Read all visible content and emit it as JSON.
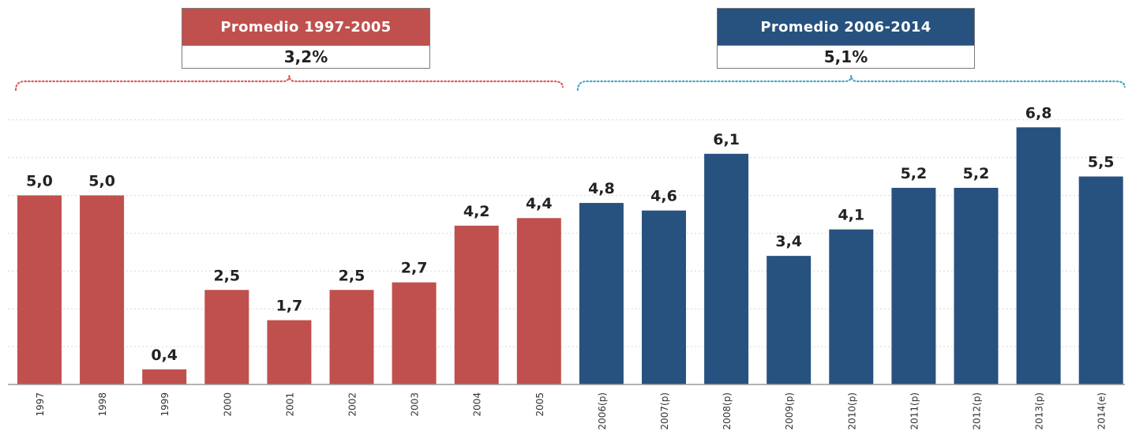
{
  "colors": {
    "period_a": "#c0504d",
    "period_b": "#27517f",
    "grid": "#d9d9d9",
    "brace_a": "#e05a5a",
    "brace_b": "#4aa6c8"
  },
  "averages": [
    {
      "label": "Promedio 1997-2005",
      "value": "3,2%"
    },
    {
      "label": "Promedio 2006-2014",
      "value": "5,1%"
    }
  ],
  "chart_data": {
    "type": "bar",
    "categories": [
      "1997",
      "1998",
      "1999",
      "2000",
      "2001",
      "2002",
      "2003",
      "2004",
      "2005",
      "2006(p)",
      "2007(p)",
      "2008(p)",
      "2009(p)",
      "2010(p)",
      "2011(p)",
      "2012(p)",
      "2013(p)",
      "2014(e)"
    ],
    "values": [
      5.0,
      5.0,
      0.4,
      2.5,
      1.7,
      2.5,
      2.7,
      4.2,
      4.4,
      4.8,
      4.6,
      6.1,
      3.4,
      4.1,
      5.2,
      5.2,
      6.8,
      5.5
    ],
    "value_labels": [
      "5,0",
      "5,0",
      "0,4",
      "2,5",
      "1,7",
      "2,5",
      "2,7",
      "4,2",
      "4,4",
      "4,8",
      "4,6",
      "6,1",
      "3,4",
      "4,1",
      "5,2",
      "5,2",
      "6,8",
      "5,5"
    ],
    "periods": [
      {
        "label": "Promedio 1997-2005",
        "from_index": 0,
        "to_index": 8
      },
      {
        "label": "Promedio 2006-2014",
        "from_index": 9,
        "to_index": 17
      }
    ],
    "ylim": [
      0,
      7
    ],
    "grid": true,
    "title": "",
    "xlabel": "",
    "ylabel": ""
  }
}
